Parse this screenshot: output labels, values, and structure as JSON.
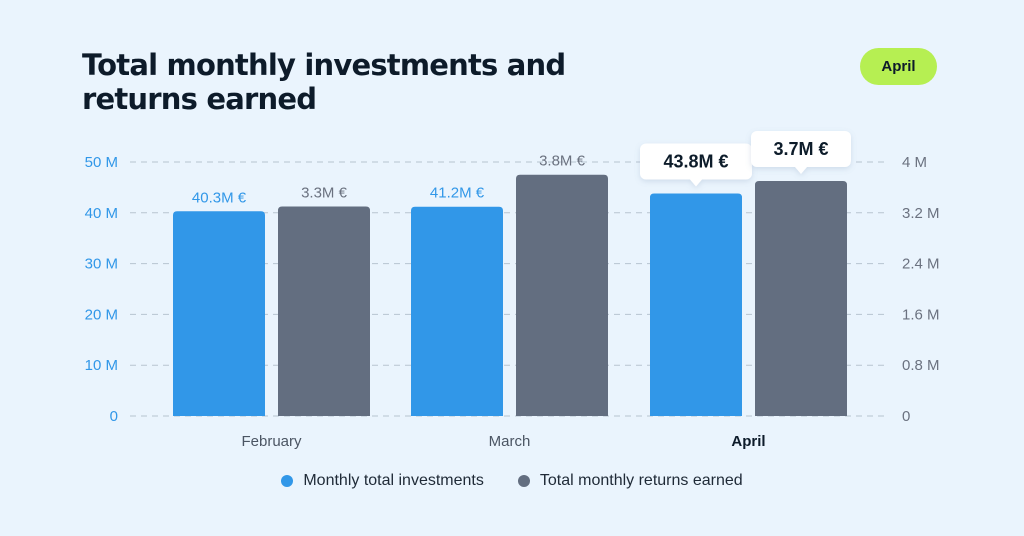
{
  "title": "Total monthly investments and returns earned",
  "badge": "April",
  "colors": {
    "investments": "#3197e8",
    "returns": "#636e80",
    "left_axis": "#3197e8",
    "right_axis": "#6b7280",
    "badge": "#b6ef52"
  },
  "chart_data": {
    "type": "bar",
    "categories": [
      "February",
      "March",
      "April"
    ],
    "highlighted_category": "April",
    "series": [
      {
        "name": "Monthly total investments",
        "values": [
          40.3,
          41.2,
          43.8
        ],
        "labels": [
          "40.3M €",
          "41.2M €",
          "43.8M €"
        ],
        "axis": "left"
      },
      {
        "name": "Total monthly returns earned",
        "values": [
          3.3,
          3.8,
          3.7
        ],
        "labels": [
          "3.3M €",
          "3.8M €",
          "3.7M €"
        ],
        "axis": "right"
      }
    ],
    "left_axis": {
      "ylim": [
        0,
        50
      ],
      "ticks": [
        0,
        10,
        20,
        30,
        40,
        50
      ],
      "tick_labels": [
        "0",
        "10 M",
        "20 M",
        "30 M",
        "40 M",
        "50 M"
      ]
    },
    "right_axis": {
      "ylim": [
        0,
        4
      ],
      "ticks": [
        0,
        0.8,
        1.6,
        2.4,
        3.2,
        4
      ],
      "tick_labels": [
        "0",
        "0.8 M",
        "1.6 M",
        "2.4 M",
        "3.2 M",
        "4 M"
      ]
    },
    "grid": true,
    "legend_position": "bottom-center"
  }
}
